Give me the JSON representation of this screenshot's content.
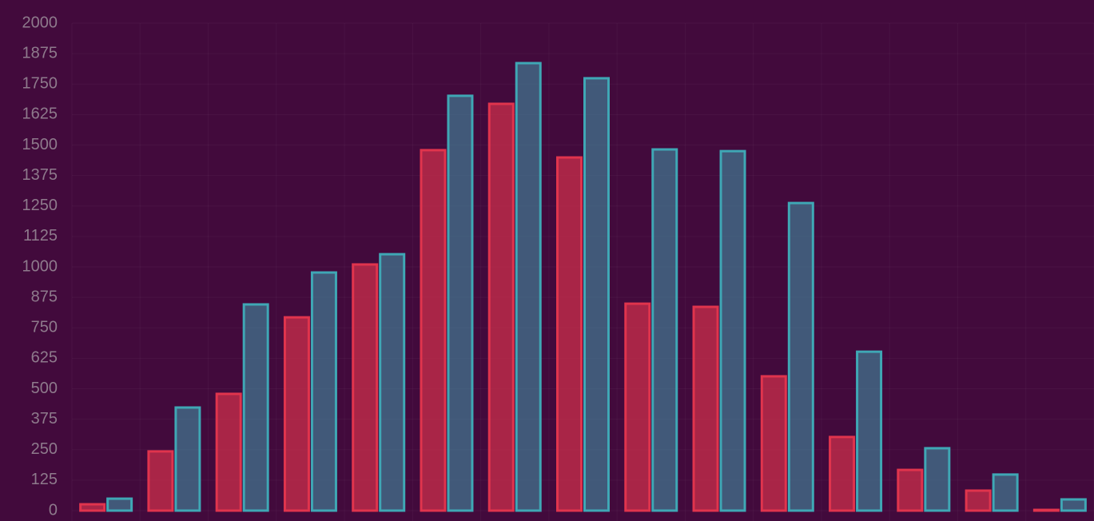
{
  "chart_data": {
    "type": "bar",
    "categories": [
      null,
      null,
      null,
      null,
      null,
      null,
      null,
      null,
      null,
      null,
      null,
      null,
      null,
      null,
      null
    ],
    "series": [
      {
        "color": "#e0344d",
        "values": [
          26,
          243,
          479,
          793,
          1010,
          1479,
          1669,
          1449,
          849,
          836,
          551,
          302,
          167,
          82,
          3
        ]
      },
      {
        "color": "#3fa7b5",
        "values": [
          49,
          423,
          846,
          977,
          1052,
          1702,
          1836,
          1774,
          1482,
          1475,
          1262,
          652,
          256,
          148,
          46
        ]
      }
    ],
    "ylim": [
      0,
      2000
    ],
    "yticks": [
      0,
      125,
      250,
      375,
      500,
      625,
      750,
      875,
      1000,
      1125,
      1250,
      1375,
      1500,
      1625,
      1750,
      1875,
      2000
    ],
    "grid": true
  }
}
